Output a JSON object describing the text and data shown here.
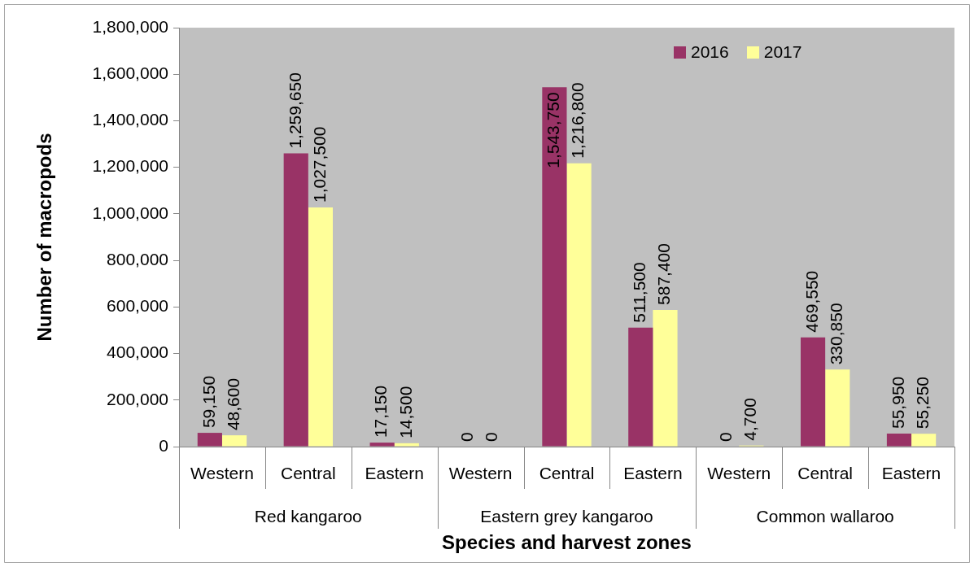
{
  "chart_data": {
    "type": "bar",
    "xlabel": "Species and harvest zones",
    "ylabel": "Number of macropods",
    "categories": [
      "Western",
      "Central",
      "Eastern",
      "Western",
      "Central",
      "Eastern",
      "Western",
      "Central",
      "Eastern"
    ],
    "series": [
      {
        "name": "2016",
        "color": "#993366",
        "values": [
          59150,
          1259650,
          17150,
          0,
          1543750,
          511500,
          0,
          469550,
          55950
        ],
        "value_labels": [
          "59,150",
          "1,259,650",
          "17,150",
          "0",
          "1,543,750",
          "511,500",
          "0",
          "469,550",
          "55,950"
        ]
      },
      {
        "name": "2017",
        "color": "#ffff99",
        "values": [
          48600,
          1027500,
          14500,
          0,
          1216800,
          587400,
          4700,
          330850,
          55250
        ],
        "value_labels": [
          "48,600",
          "1,027,500",
          "14,500",
          "0",
          "1,216,800",
          "587,400",
          "4,700",
          "330,850",
          "55,250"
        ]
      }
    ],
    "ylim": [
      0,
      1800000
    ],
    "yticks": [
      0,
      {
        "value": 200000,
        "label": "200,000"
      },
      {
        "value": 400000,
        "label": "400,000"
      },
      {
        "value": 600000,
        "label": "600,000"
      },
      {
        "value": 800000,
        "label": "800,000"
      },
      {
        "value": 1000000,
        "label": "1,000,000"
      },
      {
        "value": 1200000,
        "label": "1,200,000"
      },
      {
        "value": 1400000,
        "label": "1,400,000"
      },
      {
        "value": 1600000,
        "label": "1,600,000"
      },
      {
        "value": 1800000,
        "label": "1,800,000"
      }
    ],
    "legend": "top right",
    "annotations": [
      "Red kangaroo",
      "Eastern grey kangaroo",
      "Common wallaroo"
    ]
  }
}
